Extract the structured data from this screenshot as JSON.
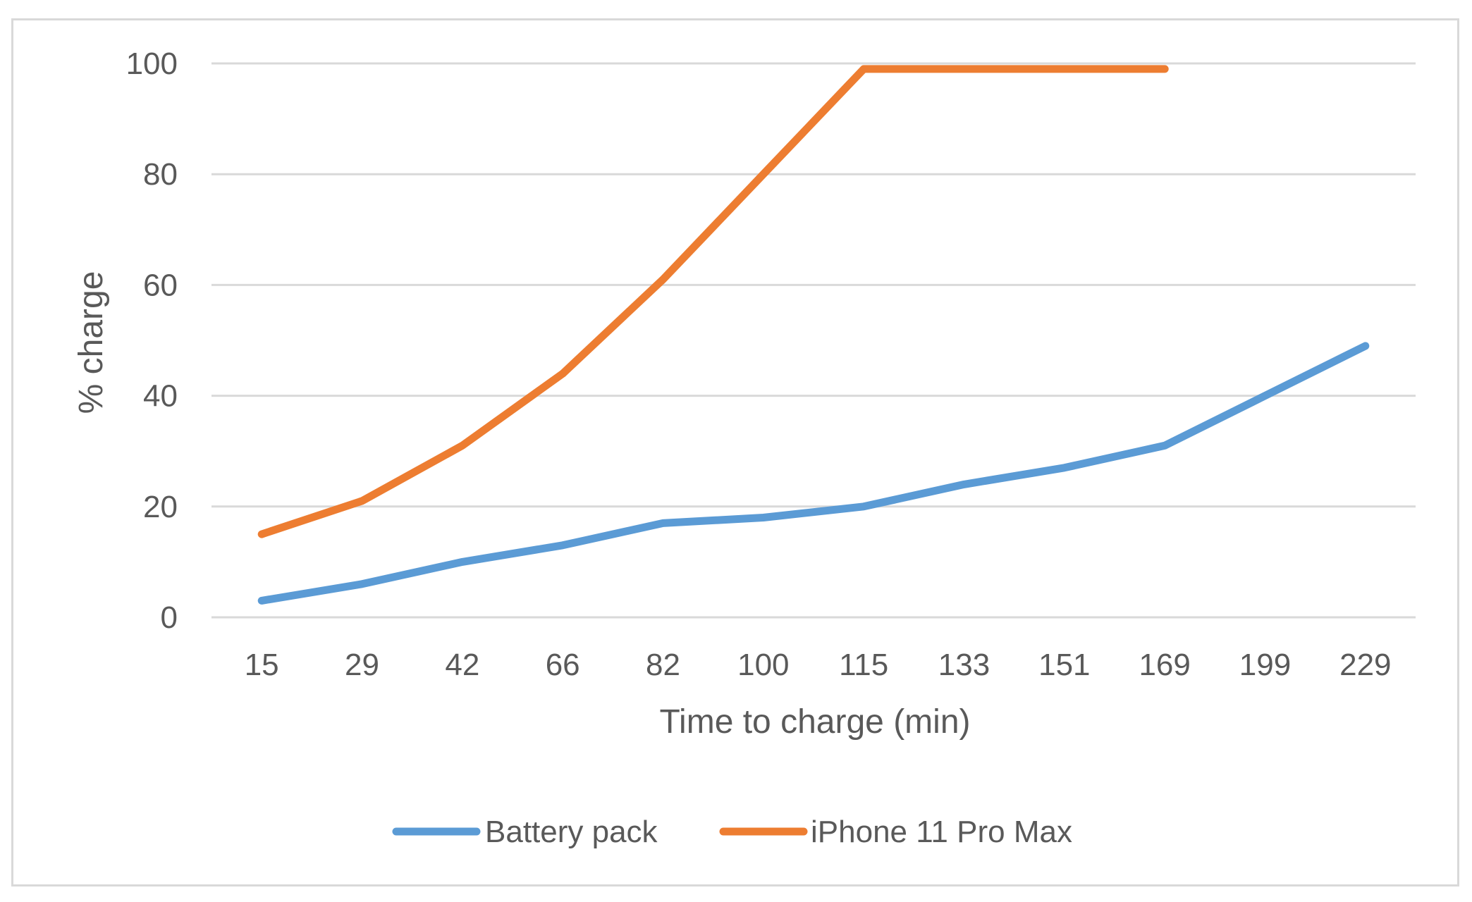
{
  "chart_data": {
    "type": "line",
    "title": "",
    "xlabel": "Time to charge (min)",
    "ylabel": "% charge",
    "categories": [
      "15",
      "29",
      "42",
      "66",
      "82",
      "100",
      "115",
      "133",
      "151",
      "169",
      "199",
      "229"
    ],
    "ylim": [
      0,
      100
    ],
    "yticks": [
      "0",
      "20",
      "40",
      "60",
      "80",
      "100"
    ],
    "grid": "horizontal",
    "legend_position": "bottom",
    "series": [
      {
        "name": "Battery pack",
        "color": "#5B9BD5",
        "values": [
          3,
          6,
          10,
          13,
          17,
          18,
          20,
          24,
          27,
          31,
          40,
          49
        ]
      },
      {
        "name": "iPhone 11 Pro Max",
        "color": "#ED7D31",
        "values": [
          15,
          21,
          31,
          44,
          61,
          80,
          99,
          99,
          99,
          99,
          null,
          null
        ]
      }
    ]
  }
}
